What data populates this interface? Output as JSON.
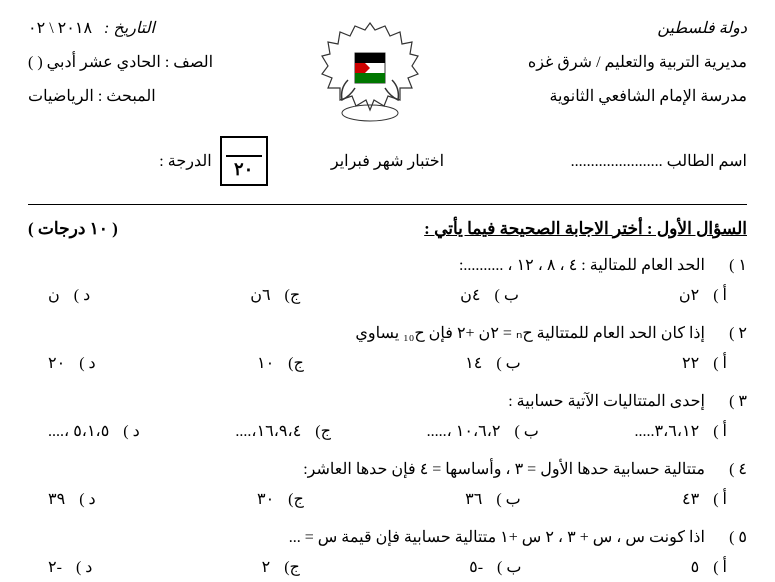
{
  "header": {
    "right": {
      "country": "دولة فلسطين",
      "directorate": "مديرية التربية والتعليم / شرق غزه",
      "school": "مدرسة الإمام الشافعي الثانوية"
    },
    "left": {
      "date_label": "التاريخ :",
      "date_value": "٢٠١٨ \\ ٠٢",
      "class_label": "الصف : الحادي عشر أدبي (    )",
      "subject_label": "المبحث : الرياضيات"
    }
  },
  "title_row": {
    "student": "اسم الطالب .......................",
    "exam_title": "اختبار شهر فبراير",
    "grade_label": "الدرجة  :",
    "grade_total": "٢٠"
  },
  "q1": {
    "title": "السؤال الأول : أختر الاجابة الصحيحة فيما يأتي :",
    "marks": "( ١٠ درجات )"
  },
  "questions": [
    {
      "num": "١ )",
      "text": "الحد العام للمتالية : ٤ ، ٨ ، ١٢ ، ..........:",
      "options": [
        {
          "label": "أ )",
          "value": "٢ن"
        },
        {
          "label": "ب )",
          "value": "٤ن"
        },
        {
          "label": "ج)",
          "value": "٦ن"
        },
        {
          "label": "د )",
          "value": "ن"
        }
      ]
    },
    {
      "num": "٢ )",
      "text": "إذا كان الحد العام للمتتالية حₙ = ٢ن +٢ فإن ح₁₀ يساوي",
      "options": [
        {
          "label": "أ )",
          "value": "٢٢"
        },
        {
          "label": "ب )",
          "value": "١٤"
        },
        {
          "label": "ج)",
          "value": "١٠"
        },
        {
          "label": "د )",
          "value": "٢٠"
        }
      ]
    },
    {
      "num": "٣ )",
      "text": "إحدى المتتاليات الآتية حسابية :",
      "options": [
        {
          "label": "أ )",
          "value": "٣،٦،١٢....."
        },
        {
          "label": "ب )",
          "value": "١٠،٦،٢ ،....."
        },
        {
          "label": "ج)",
          "value": "١٦،٩،٤،...."
        },
        {
          "label": "د )",
          "value": "٥،١،٥ ،...."
        }
      ]
    },
    {
      "num": "٤ )",
      "text": "متتالية حسابية حدها الأول = ٣ ، وأساسها = ٤ فإن حدها العاشر:",
      "options": [
        {
          "label": "أ )",
          "value": "٤٣"
        },
        {
          "label": "ب )",
          "value": "٣٦"
        },
        {
          "label": "ج)",
          "value": "٣٠"
        },
        {
          "label": "د )",
          "value": "٣٩"
        }
      ]
    },
    {
      "num": "٥ )",
      "text": "اذا كونت س ، س + ٣ ، ٢ س +١ متتالية حسابية فإن قيمة س = ...",
      "options": [
        {
          "label": "أ )",
          "value": "٥"
        },
        {
          "label": "ب )",
          "value": "-٥"
        },
        {
          "label": "ج)",
          "value": "٢"
        },
        {
          "label": "د )",
          "value": "-٢"
        }
      ]
    }
  ]
}
